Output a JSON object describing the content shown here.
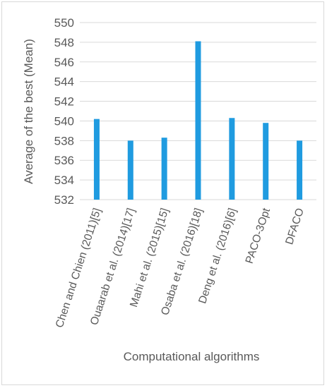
{
  "chart_data": {
    "type": "bar",
    "title": "",
    "xlabel": "Computational algorithms",
    "ylabel": "Average of the best  (Mean)",
    "categories": [
      "Chen and Chien (2011)[5]",
      "Ouaarab et al. (2014)[17]",
      "Mahi et al. (2015)[15]",
      "Osaba et al. (2016)[18]",
      "Deng et al. (2016)[6]",
      "PACO-3Opt",
      "DFACO"
    ],
    "values": [
      540.2,
      538.0,
      538.3,
      548.1,
      540.3,
      539.8,
      538.0
    ],
    "ylim": [
      532,
      550
    ],
    "yticks": [
      532,
      534,
      536,
      538,
      540,
      542,
      544,
      546,
      548,
      550
    ],
    "grid": true,
    "bar_color": "#1f9be0",
    "grid_color": "#d9d9d9"
  }
}
